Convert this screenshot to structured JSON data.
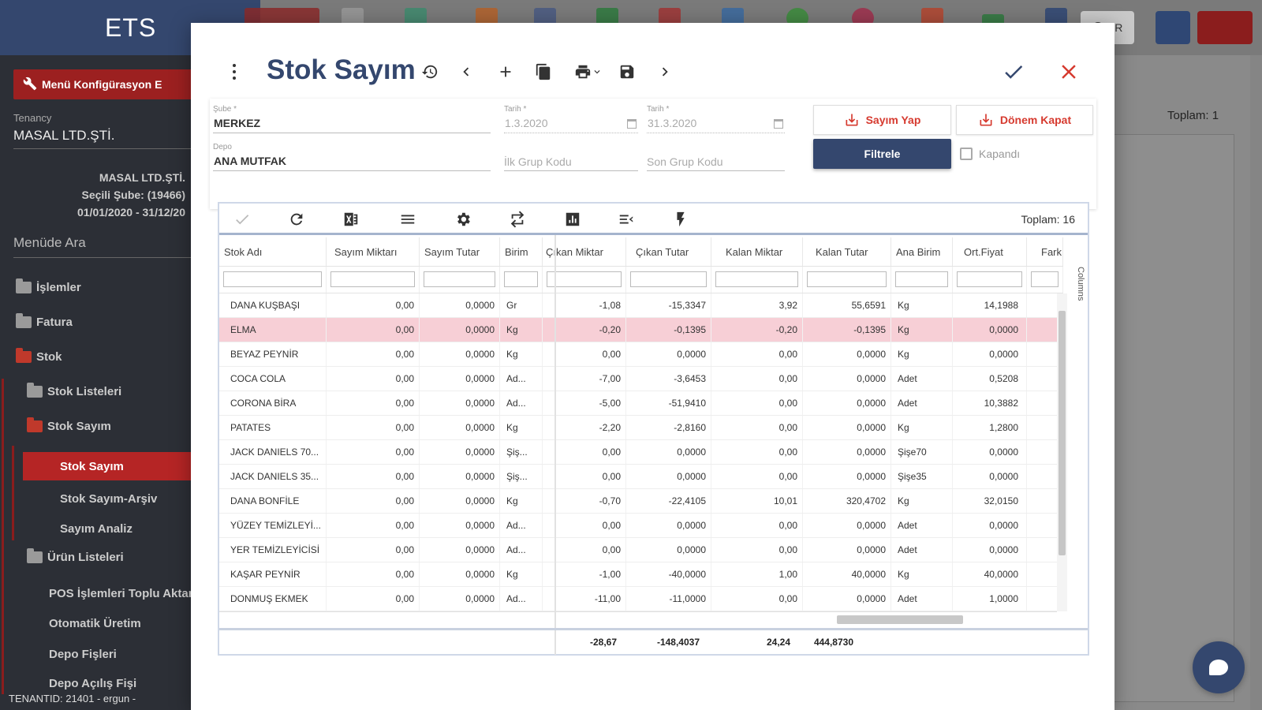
{
  "app": {
    "brand": "ETS"
  },
  "sidebar": {
    "menu_config": "Menü Konfigürasyon E",
    "tenancy_label": "Tenancy",
    "tenancy_value": "MASAL LTD.ŞTİ.",
    "company_name": "MASAL LTD.ŞTİ.",
    "branch": "Seçili Şube: (19466)",
    "date_range": "01/01/2020 - 31/12/20",
    "search_label": "Menüde Ara",
    "items": {
      "islemler": "İşlemler",
      "fatura": "Fatura",
      "stok": "Stok",
      "stok_listeleri": "Stok Listeleri",
      "stok_sayim": "Stok Sayım",
      "stok_sayim_active": "Stok Sayım",
      "stok_sayim_arsiv": "Stok Sayım-Arşiv",
      "sayim_analiz": "Sayım Analiz",
      "urun_listeleri": "Ürün Listeleri",
      "pos_islemleri": "POS İşlemleri Toplu Aktarı",
      "otomatik_uretim": "Otomatik Üretim",
      "depo_fisleri": "Depo Fişleri",
      "depo_acilis": "Depo Açılış Fişi"
    },
    "tenant_footer": "TENANTID: 21401 - ergun -"
  },
  "topbar": {
    "language": "TR"
  },
  "background": {
    "toplam": "Toplam: 1"
  },
  "modal": {
    "title": "Stok Sayım",
    "form": {
      "sube_label": "Şube *",
      "sube_value": "MERKEZ",
      "depo_label": "Depo",
      "depo_value": "ANA MUTFAK",
      "tarih1_label": "Tarih *",
      "tarih1_value": "1.3.2020",
      "tarih2_label": "Tarih *",
      "tarih2_value": "31.3.2020",
      "ilk_grup_placeholder": "İlk Grup Kodu",
      "son_grup_placeholder": "Son Grup Kodu",
      "sayim_yap": "Sayım Yap",
      "donem_kapat": "Dönem Kapat",
      "filtrele": "Filtrele",
      "kapandi": "Kapandı"
    },
    "grid": {
      "toplam": "Toplam: 16",
      "columns_side": "Columns",
      "headers": {
        "stok_adi": "Stok Adı",
        "sayim_miktari": "Sayım Miktarı",
        "sayim_tutar": "Sayım Tutar",
        "birim": "Birim",
        "cikan_miktar": "Çıkan Miktar",
        "cikan_tutar": "Çıkan Tutar",
        "kalan_miktar": "Kalan Miktar",
        "kalan_tutar": "Kalan Tutar",
        "ana_birim": "Ana Birim",
        "ort_fiyat": "Ort.Fiyat",
        "fark": "Fark"
      },
      "rows": [
        [
          "DANA KUŞBAŞI",
          "0,00",
          "0,0000",
          "Gr",
          "-1,08",
          "-15,3347",
          "3,92",
          "55,6591",
          "Kg",
          "14,1988"
        ],
        [
          "ELMA",
          "0,00",
          "0,0000",
          "Kg",
          "-0,20",
          "-0,1395",
          "-0,20",
          "-0,1395",
          "Kg",
          "0,0000"
        ],
        [
          "BEYAZ PEYNİR",
          "0,00",
          "0,0000",
          "Kg",
          "0,00",
          "0,0000",
          "0,00",
          "0,0000",
          "Kg",
          "0,0000"
        ],
        [
          "COCA COLA",
          "0,00",
          "0,0000",
          "Ad...",
          "-7,00",
          "-3,6453",
          "0,00",
          "0,0000",
          "Adet",
          "0,5208"
        ],
        [
          "CORONA BİRA",
          "0,00",
          "0,0000",
          "Ad...",
          "-5,00",
          "-51,9410",
          "0,00",
          "0,0000",
          "Adet",
          "10,3882"
        ],
        [
          "PATATES",
          "0,00",
          "0,0000",
          "Kg",
          "-2,20",
          "-2,8160",
          "0,00",
          "0,0000",
          "Kg",
          "1,2800"
        ],
        [
          "JACK DANIELS 70...",
          "0,00",
          "0,0000",
          "Şiş...",
          "0,00",
          "0,0000",
          "0,00",
          "0,0000",
          "Şişe70",
          "0,0000"
        ],
        [
          "JACK DANIELS 35...",
          "0,00",
          "0,0000",
          "Şiş...",
          "0,00",
          "0,0000",
          "0,00",
          "0,0000",
          "Şişe35",
          "0,0000"
        ],
        [
          "DANA BONFİLE",
          "0,00",
          "0,0000",
          "Kg",
          "-0,70",
          "-22,4105",
          "10,01",
          "320,4702",
          "Kg",
          "32,0150"
        ],
        [
          "YÜZEY TEMİZLEYİ...",
          "0,00",
          "0,0000",
          "Ad...",
          "0,00",
          "0,0000",
          "0,00",
          "0,0000",
          "Adet",
          "0,0000"
        ],
        [
          "YER TEMİZLEYİCİSİ",
          "0,00",
          "0,0000",
          "Ad...",
          "0,00",
          "0,0000",
          "0,00",
          "0,0000",
          "Adet",
          "0,0000"
        ],
        [
          "KAŞAR PEYNİR",
          "0,00",
          "0,0000",
          "Kg",
          "-1,00",
          "-40,0000",
          "1,00",
          "40,0000",
          "Kg",
          "40,0000"
        ],
        [
          "DONMUŞ EKMEK",
          "0,00",
          "0,0000",
          "Ad...",
          "-11,00",
          "-11,0000",
          "0,00",
          "0,0000",
          "Adet",
          "1,0000"
        ]
      ],
      "selected_row_index": 1,
      "totals": {
        "cikan_miktar": "-28,67",
        "cikan_tutar": "-148,4037",
        "kalan_miktar": "24,24",
        "kalan_tutar": "444,8730"
      }
    }
  }
}
